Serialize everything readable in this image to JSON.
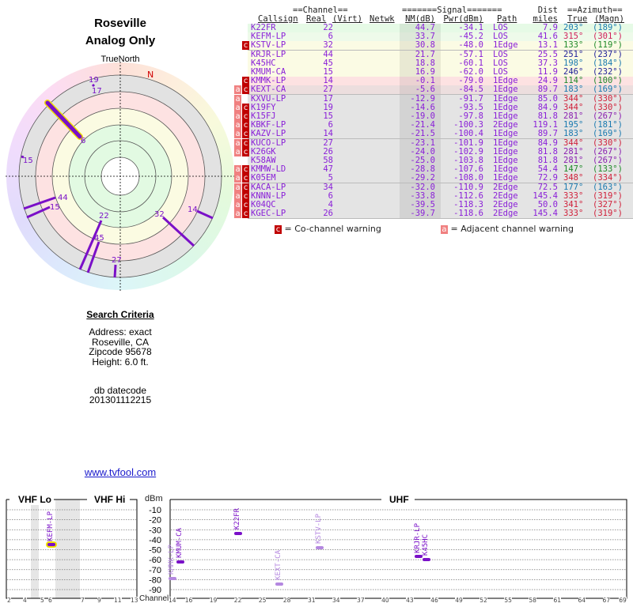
{
  "location": {
    "title": "Roseville",
    "subtitle": "Analog Only",
    "north_label": "TrueNorth",
    "north_marker": "N"
  },
  "search": {
    "heading": "Search Criteria",
    "address": "Address: exact",
    "city": "Roseville, CA",
    "zip": "Zipcode 95678",
    "height": "Height: 6.0 ft.",
    "db_label": "db datecode",
    "db_value": "201301112215"
  },
  "link": "www.tvfool.com",
  "table": {
    "group_channel": "==Channel==",
    "group_signal": "=======Signal=======",
    "dist_top": "Dist",
    "group_azimuth": "==Azimuth==",
    "cols": {
      "callsign": "Callsign",
      "real": "Real",
      "virt": "(Virt)",
      "netwk": "Netwk",
      "nm": "NM(dB)",
      "pwr": "Pwr(dBm)",
      "path": "Path",
      "dist": "miles",
      "true": "True",
      "magn": "(Magn)"
    },
    "rows": [
      {
        "callsign": "K22FR",
        "real": "22",
        "nm": "44.7",
        "pwr": "-34.1",
        "path": "LOS",
        "dist": "7.9",
        "true": "203°",
        "magn": "(189°)",
        "flags": "",
        "bg": "#e6fae6",
        "az_color": "#1a7ab0"
      },
      {
        "callsign": "KEFM-LP",
        "real": "6",
        "nm": "33.7",
        "pwr": "-45.2",
        "path": "LOS",
        "dist": "41.6",
        "true": "315°",
        "magn": "(301°)",
        "flags": "",
        "bg": "#eefaea",
        "az_color": "#d0205a"
      },
      {
        "callsign": "KSTV-LP",
        "real": "32",
        "nm": "30.8",
        "pwr": "-48.0",
        "path": "1Edge",
        "dist": "13.1",
        "true": "133°",
        "magn": "(119°)",
        "flags": "c",
        "bg": "#fbfbe4",
        "az_color": "#1f8a2a"
      },
      {
        "callsign": "KRJR-LP",
        "real": "44",
        "nm": "21.7",
        "pwr": "-57.1",
        "path": "LOS",
        "dist": "25.5",
        "true": "251°",
        "magn": "(237°)",
        "flags": "",
        "bg": "#fbfbe4",
        "az_color": "#22229a"
      },
      {
        "callsign": "K45HC",
        "real": "45",
        "nm": "18.8",
        "pwr": "-60.1",
        "path": "LOS",
        "dist": "37.3",
        "true": "198°",
        "magn": "(184°)",
        "flags": "",
        "bg": "#fbfbe4",
        "az_color": "#1a7ab0"
      },
      {
        "callsign": "KMUM-CA",
        "real": "15",
        "nm": "16.9",
        "pwr": "-62.0",
        "path": "LOS",
        "dist": "11.9",
        "true": "246°",
        "magn": "(232°)",
        "flags": "",
        "bg": "#fbfbe4",
        "az_color": "#22229a"
      },
      {
        "callsign": "KMMK-LP",
        "real": "14",
        "nm": "-0.1",
        "pwr": "-79.0",
        "path": "1Edge",
        "dist": "24.9",
        "true": "114°",
        "magn": "(100°)",
        "flags": "c",
        "bg": "#fde2e2",
        "az_color": "#1f8a2a"
      },
      {
        "callsign": "KEXT-CA",
        "real": "27",
        "nm": "-5.6",
        "pwr": "-84.5",
        "path": "1Edge",
        "dist": "89.7",
        "true": "183°",
        "magn": "(169°)",
        "flags": "ac",
        "bg": "#ecdede",
        "az_color": "#1a7ab0"
      },
      {
        "callsign": "KXVU-LP",
        "real": "17",
        "nm": "-12.9",
        "pwr": "-91.7",
        "path": "1Edge",
        "dist": "85.0",
        "true": "344°",
        "magn": "(330°)",
        "flags": "a",
        "bg": "#e4e4e4",
        "az_color": "#d0203a"
      },
      {
        "callsign": "K19FY",
        "real": "19",
        "nm": "-14.6",
        "pwr": "-93.5",
        "path": "1Edge",
        "dist": "84.9",
        "true": "344°",
        "magn": "(330°)",
        "flags": "ac",
        "bg": "#e4e4e4",
        "az_color": "#d0203a"
      },
      {
        "callsign": "K15FJ",
        "real": "15",
        "nm": "-19.0",
        "pwr": "-97.8",
        "path": "1Edge",
        "dist": "81.8",
        "true": "281°",
        "magn": "(267°)",
        "flags": "ac",
        "bg": "#e4e4e4",
        "az_color": "#8a1fb0"
      },
      {
        "callsign": "KBKF-LP",
        "real": "6",
        "nm": "-21.4",
        "pwr": "-100.3",
        "path": "2Edge",
        "dist": "119.1",
        "true": "195°",
        "magn": "(181°)",
        "flags": "ac",
        "bg": "#e4e4e4",
        "az_color": "#1a7ab0"
      },
      {
        "callsign": "KAZV-LP",
        "real": "14",
        "nm": "-21.5",
        "pwr": "-100.4",
        "path": "1Edge",
        "dist": "89.7",
        "true": "183°",
        "magn": "(169°)",
        "flags": "ac",
        "bg": "#e4e4e4",
        "az_color": "#1a7ab0"
      },
      {
        "callsign": "KUCO-LP",
        "real": "27",
        "nm": "-23.1",
        "pwr": "-101.9",
        "path": "1Edge",
        "dist": "84.9",
        "true": "344°",
        "magn": "(330°)",
        "flags": "ac",
        "bg": "#e4e4e4",
        "az_color": "#d0203a"
      },
      {
        "callsign": "K26GK",
        "real": "26",
        "nm": "-24.0",
        "pwr": "-102.9",
        "path": "1Edge",
        "dist": "81.8",
        "true": "281°",
        "magn": "(267°)",
        "flags": "ac",
        "bg": "#e4e4e4",
        "az_color": "#8a1fb0"
      },
      {
        "callsign": "K58AW",
        "real": "58",
        "nm": "-25.0",
        "pwr": "-103.8",
        "path": "1Edge",
        "dist": "81.8",
        "true": "281°",
        "magn": "(267°)",
        "flags": "",
        "bg": "#e4e4e4",
        "az_color": "#8a1fb0"
      },
      {
        "callsign": "KMMW-LD",
        "real": "47",
        "nm": "-28.8",
        "pwr": "-107.6",
        "path": "1Edge",
        "dist": "54.4",
        "true": "147°",
        "magn": "(133°)",
        "flags": "ac",
        "bg": "#e4e4e4",
        "az_color": "#1f8a2a"
      },
      {
        "callsign": "K05EM",
        "real": "5",
        "nm": "-29.2",
        "pwr": "-108.0",
        "path": "1Edge",
        "dist": "72.9",
        "true": "348°",
        "magn": "(334°)",
        "flags": "ac",
        "bg": "#e4e4e4",
        "az_color": "#d0203a"
      },
      {
        "callsign": "KACA-LP",
        "real": "34",
        "nm": "-32.0",
        "pwr": "-110.9",
        "path": "2Edge",
        "dist": "72.5",
        "true": "177°",
        "magn": "(163°)",
        "flags": "ac",
        "bg": "#e4e4e4",
        "az_color": "#1a7ab0"
      },
      {
        "callsign": "KNNN-LP",
        "real": "6",
        "nm": "-33.8",
        "pwr": "-112.6",
        "path": "2Edge",
        "dist": "145.4",
        "true": "333°",
        "magn": "(319°)",
        "flags": "ac",
        "bg": "#e4e4e4",
        "az_color": "#d0203a"
      },
      {
        "callsign": "K04QC",
        "real": "4",
        "nm": "-39.5",
        "pwr": "-118.3",
        "path": "2Edge",
        "dist": "50.0",
        "true": "341°",
        "magn": "(327°)",
        "flags": "ac",
        "bg": "#e4e4e4",
        "az_color": "#d0203a"
      },
      {
        "callsign": "KGEC-LP",
        "real": "26",
        "nm": "-39.7",
        "pwr": "-118.6",
        "path": "2Edge",
        "dist": "145.4",
        "true": "333°",
        "magn": "(319°)",
        "flags": "ac",
        "bg": "#e4e4e4",
        "az_color": "#d0203a"
      }
    ],
    "flag_c": "c",
    "flag_a": "a",
    "legend_c": "= Co-channel warning",
    "legend_a": "= Adjacent channel warning"
  },
  "polar": {
    "labels": [
      "19",
      "17",
      "6",
      "15",
      "44",
      "15",
      "22",
      "45",
      "27",
      "32",
      "14"
    ]
  },
  "spectrum": {
    "band_vhf_lo": "VHF Lo",
    "band_vhf_hi": "VHF Hi",
    "band_uhf": "UHF",
    "unit": "dBm",
    "channel_label": "Channel",
    "db_ticks": [
      "-10",
      "-20",
      "-30",
      "-40",
      "-50",
      "-60",
      "-70",
      "-80",
      "-90"
    ],
    "vhf_channels": [
      "2",
      "4",
      "5",
      "6",
      "7",
      "9",
      "11",
      "13"
    ],
    "uhf_channels": [
      "14",
      "16",
      "19",
      "22",
      "25",
      "28",
      "31",
      "34",
      "37",
      "40",
      "43",
      "46",
      "49",
      "52",
      "55",
      "58",
      "61",
      "64",
      "67",
      "69"
    ],
    "stations": [
      {
        "callsign": "KEFM-LP",
        "channel": 6,
        "pwr": -45.2,
        "style": "highlight"
      },
      {
        "callsign": "KMMK-LP",
        "channel": 14,
        "pwr": -79.0,
        "style": "warning"
      },
      {
        "callsign": "KMUM-CA",
        "channel": 15,
        "pwr": -62.0,
        "style": "normal"
      },
      {
        "callsign": "K22FR",
        "channel": 22,
        "pwr": -34.1,
        "style": "normal"
      },
      {
        "callsign": "KEXT-CA",
        "channel": 27,
        "pwr": -84.5,
        "style": "warning"
      },
      {
        "callsign": "KSTV-LP",
        "channel": 32,
        "pwr": -48.0,
        "style": "warning"
      },
      {
        "callsign": "KRJR-LP",
        "channel": 44,
        "pwr": -57.1,
        "style": "normal"
      },
      {
        "callsign": "K45HC",
        "channel": 45,
        "pwr": -60.1,
        "style": "normal"
      }
    ]
  },
  "colors": {
    "station": "#7a10c8",
    "warning_station": "#b487e0",
    "highlight": "#f0e000",
    "cochannel": "#c00000",
    "adjacent": "#f08080",
    "link": "#1a1acc"
  }
}
